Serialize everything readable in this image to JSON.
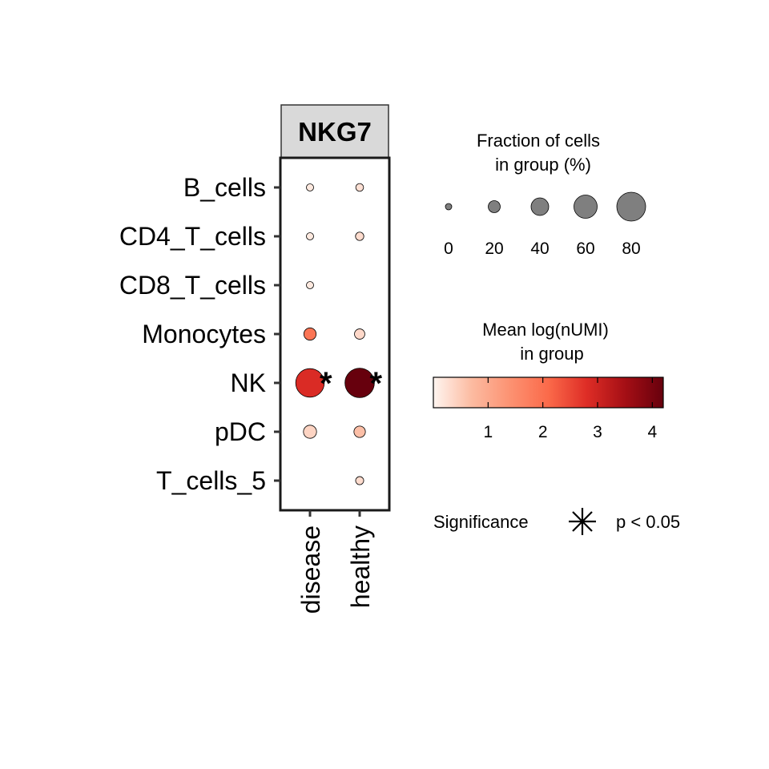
{
  "chart_data": {
    "type": "scatter",
    "facet_label": "NKG7",
    "categories_y": [
      "B_cells",
      "CD4_T_cells",
      "CD8_T_cells",
      "Monocytes",
      "NK",
      "pDC",
      "T_cells_5"
    ],
    "categories_x": [
      "disease",
      "healthy"
    ],
    "points": [
      {
        "x": "disease",
        "y": "B_cells",
        "fraction_pct": 3,
        "mean_log_numi": 0.15,
        "significant": false
      },
      {
        "x": "healthy",
        "y": "B_cells",
        "fraction_pct": 5,
        "mean_log_numi": 0.25,
        "significant": false
      },
      {
        "x": "disease",
        "y": "CD4_T_cells",
        "fraction_pct": 3,
        "mean_log_numi": 0.15,
        "significant": false
      },
      {
        "x": "healthy",
        "y": "CD4_T_cells",
        "fraction_pct": 7,
        "mean_log_numi": 0.3,
        "significant": false
      },
      {
        "x": "disease",
        "y": "CD8_T_cells",
        "fraction_pct": 3,
        "mean_log_numi": 0.15,
        "significant": false
      },
      {
        "x": "disease",
        "y": "Monocytes",
        "fraction_pct": 21,
        "mean_log_numi": 1.9,
        "significant": false
      },
      {
        "x": "healthy",
        "y": "Monocytes",
        "fraction_pct": 14,
        "mean_log_numi": 0.35,
        "significant": false
      },
      {
        "x": "disease",
        "y": "NK",
        "fraction_pct": 79,
        "mean_log_numi": 2.85,
        "significant": true
      },
      {
        "x": "healthy",
        "y": "NK",
        "fraction_pct": 82,
        "mean_log_numi": 4.2,
        "significant": true
      },
      {
        "x": "disease",
        "y": "pDC",
        "fraction_pct": 24,
        "mean_log_numi": 0.4,
        "significant": false
      },
      {
        "x": "healthy",
        "y": "pDC",
        "fraction_pct": 18,
        "mean_log_numi": 0.65,
        "significant": false
      },
      {
        "x": "healthy",
        "y": "T_cells_5",
        "fraction_pct": 6,
        "mean_log_numi": 0.3,
        "significant": false
      }
    ],
    "size_legend": {
      "title_line1": "Fraction of cells",
      "title_line2": "in group (%)",
      "breaks": [
        0,
        20,
        40,
        60,
        80
      ],
      "labels": [
        "0",
        "20",
        "40",
        "60",
        "80"
      ]
    },
    "color_legend": {
      "title_line1": "Mean log(nUMI)",
      "title_line2": "in group",
      "range": [
        0,
        4.2
      ],
      "breaks": [
        1,
        2,
        3,
        4
      ],
      "labels": [
        "1",
        "2",
        "3",
        "4"
      ],
      "colors": [
        "#fff5f0",
        "#fcbba1",
        "#fc9272",
        "#fb6a4a",
        "#de2d26",
        "#a50f15",
        "#67000d"
      ]
    },
    "significance_legend": {
      "title": "Significance",
      "label": "p < 0.05",
      "marker": "asterisk"
    },
    "colors": {
      "point_stroke": "#000000",
      "strip_fill": "#d9d9d9",
      "legend_point_fill": "#7f7f7f"
    }
  }
}
